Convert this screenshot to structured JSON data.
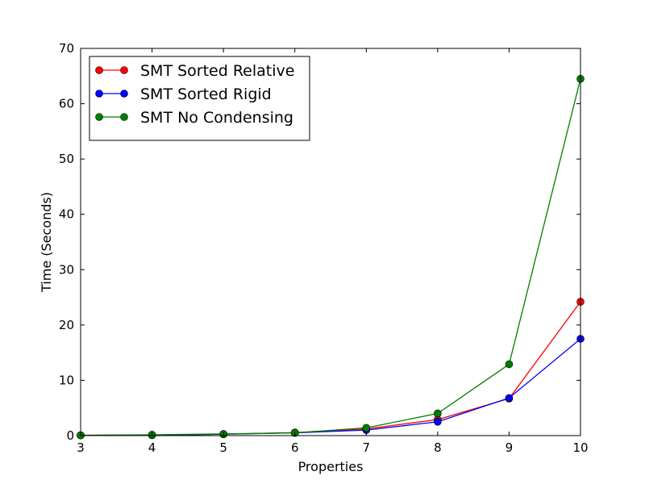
{
  "chart_data": {
    "type": "line",
    "xlabel": "Properties",
    "ylabel": "Time (Seconds)",
    "xlim": [
      3,
      10
    ],
    "ylim": [
      0,
      70
    ],
    "x_ticks": [
      3,
      4,
      5,
      6,
      7,
      8,
      9,
      10
    ],
    "y_ticks": [
      0,
      10,
      20,
      30,
      40,
      50,
      60,
      70
    ],
    "grid": false,
    "legend_position": "top-left",
    "x": [
      3,
      4,
      5,
      6,
      7,
      8,
      9,
      10
    ],
    "series": [
      {
        "name": "SMT Sorted Relative",
        "color": "#ff0000",
        "values": [
          0.05,
          0.1,
          0.25,
          0.55,
          1.2,
          2.9,
          6.7,
          24.2
        ]
      },
      {
        "name": "SMT Sorted Rigid",
        "color": "#0000ff",
        "values": [
          0.05,
          0.1,
          0.25,
          0.5,
          1.0,
          2.5,
          6.8,
          17.5
        ]
      },
      {
        "name": "SMT No Condensing",
        "color": "#008000",
        "values": [
          0.05,
          0.15,
          0.3,
          0.5,
          1.4,
          4.0,
          12.9,
          64.5
        ]
      }
    ]
  }
}
